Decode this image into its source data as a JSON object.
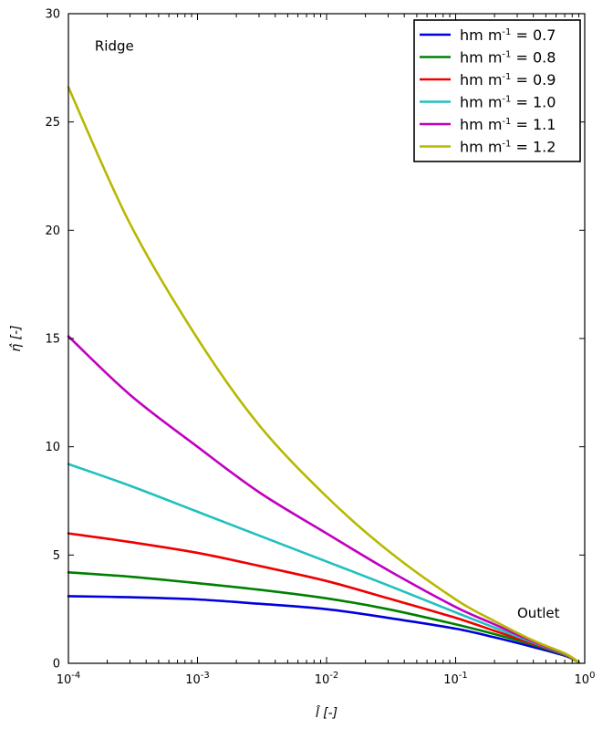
{
  "chart_data": {
    "type": "line",
    "xscale": "log",
    "xlim": [
      0.0001,
      1
    ],
    "ylim": [
      0,
      30
    ],
    "xlabel": "l̂ [-]",
    "ylabel": "η̂ [-]",
    "x_ticks": [
      {
        "value": 0.0001,
        "base": "10",
        "exp": "-4"
      },
      {
        "value": 0.001,
        "base": "10",
        "exp": "-3"
      },
      {
        "value": 0.01,
        "base": "10",
        "exp": "-2"
      },
      {
        "value": 0.1,
        "base": "10",
        "exp": "-1"
      },
      {
        "value": 1,
        "base": "10",
        "exp": "0"
      }
    ],
    "y_ticks": [
      0,
      5,
      10,
      15,
      20,
      25,
      30
    ],
    "annotations": [
      {
        "text": "Ridge",
        "x": 0.00016,
        "y": 28.3
      },
      {
        "text": "Outlet",
        "x": 0.3,
        "y": 2.1
      }
    ],
    "legend_position": "top-right",
    "grid": false,
    "series": [
      {
        "name": "0.7",
        "color": "#0000dd",
        "x": [
          0.0001,
          0.0003,
          0.001,
          0.003,
          0.01,
          0.03,
          0.1,
          0.2,
          0.4,
          0.7,
          0.9
        ],
        "y": [
          3.1,
          3.05,
          2.95,
          2.75,
          2.5,
          2.1,
          1.6,
          1.2,
          0.75,
          0.35,
          0.05
        ]
      },
      {
        "name": "0.8",
        "color": "#008000",
        "x": [
          0.0001,
          0.0003,
          0.001,
          0.003,
          0.01,
          0.03,
          0.1,
          0.2,
          0.4,
          0.7,
          0.9
        ],
        "y": [
          4.2,
          4.0,
          3.7,
          3.4,
          3.0,
          2.5,
          1.8,
          1.35,
          0.85,
          0.38,
          0.05
        ]
      },
      {
        "name": "0.9",
        "color": "#ee0000",
        "x": [
          0.0001,
          0.0003,
          0.001,
          0.003,
          0.01,
          0.03,
          0.1,
          0.2,
          0.4,
          0.7,
          0.9
        ],
        "y": [
          6.0,
          5.6,
          5.1,
          4.5,
          3.8,
          3.0,
          2.1,
          1.5,
          0.9,
          0.4,
          0.05
        ]
      },
      {
        "name": "1.0",
        "color": "#20c0c0",
        "x": [
          0.0001,
          0.0003,
          0.001,
          0.003,
          0.01,
          0.03,
          0.1,
          0.2,
          0.4,
          0.7,
          0.9
        ],
        "y": [
          9.2,
          8.2,
          7.0,
          5.9,
          4.7,
          3.6,
          2.35,
          1.65,
          0.95,
          0.42,
          0.05
        ]
      },
      {
        "name": "1.1",
        "color": "#c000c0",
        "x": [
          0.0001,
          0.0003,
          0.001,
          0.003,
          0.01,
          0.03,
          0.1,
          0.2,
          0.4,
          0.7,
          0.9
        ],
        "y": [
          15.1,
          12.4,
          10.0,
          7.9,
          6.0,
          4.3,
          2.6,
          1.8,
          1.0,
          0.44,
          0.05
        ]
      },
      {
        "name": "1.2",
        "color": "#b8b800",
        "x": [
          0.0001,
          0.0003,
          0.001,
          0.003,
          0.01,
          0.03,
          0.1,
          0.2,
          0.4,
          0.7,
          0.9
        ],
        "y": [
          26.6,
          20.3,
          15.0,
          11.0,
          7.7,
          5.2,
          2.95,
          1.95,
          1.05,
          0.46,
          0.05
        ]
      }
    ],
    "legend_prefix": "hm m",
    "legend_exp": "-1",
    "legend_eq": " = "
  }
}
